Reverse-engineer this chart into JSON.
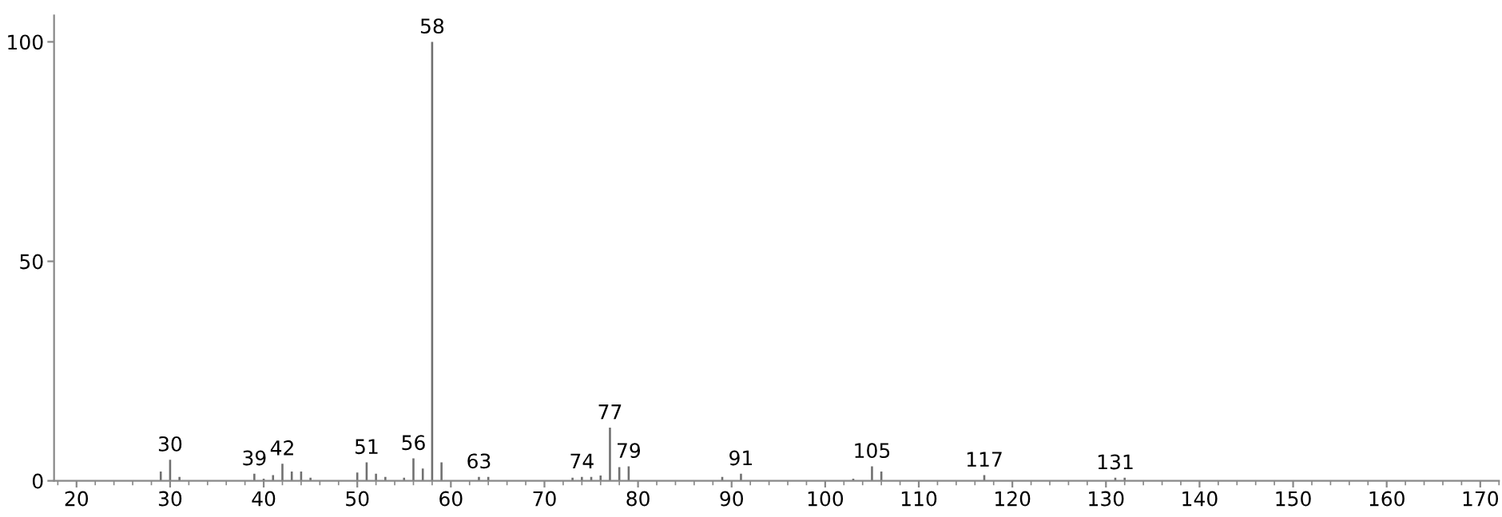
{
  "chart_data": {
    "type": "bar",
    "x": [
      29,
      30,
      31,
      39,
      40,
      41,
      42,
      43,
      44,
      45,
      50,
      51,
      52,
      53,
      55,
      56,
      57,
      58,
      59,
      63,
      64,
      73,
      74,
      75,
      76,
      77,
      78,
      79,
      89,
      91,
      103,
      105,
      106,
      116,
      117,
      131,
      132
    ],
    "values": [
      2.1,
      4.8,
      0.9,
      1.6,
      0.5,
      1.3,
      3.9,
      2.1,
      2.1,
      0.7,
      1.9,
      4.2,
      1.6,
      0.9,
      0.7,
      5.1,
      2.8,
      100,
      4.2,
      0.9,
      0.9,
      0.7,
      0.9,
      0.9,
      1.2,
      12.1,
      3.1,
      3.3,
      0.9,
      1.6,
      0.5,
      3.3,
      2.1,
      null,
      1.3,
      0.7,
      0.7
    ],
    "color": "#707070",
    "xlim": [
      17.6,
      172
    ],
    "xticks": [
      20,
      30,
      40,
      50,
      60,
      70,
      80,
      90,
      100,
      110,
      120,
      130,
      140,
      150,
      160,
      170
    ],
    "ylim": [
      0,
      106
    ],
    "yticks": [
      0,
      50,
      100
    ],
    "grid": false,
    "legend": false,
    "annotations": [
      {
        "text": "30",
        "x": 30,
        "y": 4.8
      },
      {
        "text": "39",
        "x": 39,
        "y": 1.6
      },
      {
        "text": "42",
        "x": 42,
        "y": 3.9
      },
      {
        "text": "51",
        "x": 51,
        "y": 4.2
      },
      {
        "text": "56",
        "x": 56,
        "y": 5.1
      },
      {
        "text": "58",
        "x": 58,
        "y": 100
      },
      {
        "text": "63",
        "x": 63,
        "y": 0.9
      },
      {
        "text": "74",
        "x": 74,
        "y": 0.9
      },
      {
        "text": "77",
        "x": 77,
        "y": 12.1
      },
      {
        "text": "79",
        "x": 79,
        "y": 3.3
      },
      {
        "text": "91",
        "x": 91,
        "y": 1.6
      },
      {
        "text": "105",
        "x": 105,
        "y": 3.3
      },
      {
        "text": "117",
        "x": 117,
        "y": 1.3
      },
      {
        "text": "131",
        "x": 131,
        "y": 0.7
      }
    ]
  }
}
